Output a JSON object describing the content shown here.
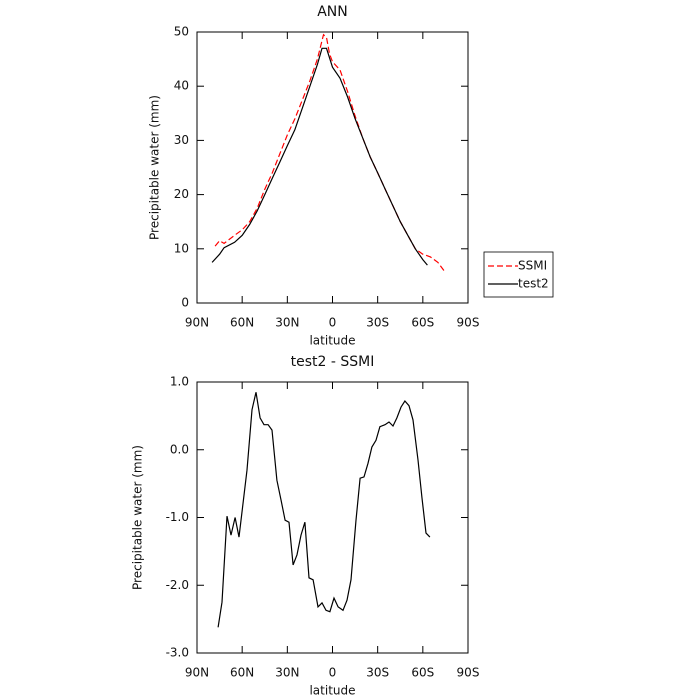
{
  "chart_data": [
    {
      "type": "line",
      "title": "ANN",
      "xlabel": "latitude",
      "ylabel": "Precipitable water (mm)",
      "xlim": [
        90,
        -90
      ],
      "ylim": [
        0,
        50
      ],
      "xticks": [
        {
          "value": 90,
          "label": "90N"
        },
        {
          "value": 60,
          "label": "60N"
        },
        {
          "value": 30,
          "label": "30N"
        },
        0,
        {
          "value": -30,
          "label": "30S"
        },
        {
          "value": -60,
          "label": "60S"
        },
        {
          "value": -90,
          "label": "90S"
        }
      ],
      "yticks": [
        0,
        10,
        20,
        30,
        40,
        50
      ],
      "legend": "right",
      "series": [
        {
          "name": "SSMI",
          "color": "#ff0000",
          "line_style": "dashed",
          "x": [
            78,
            75,
            72,
            65,
            60,
            55,
            50,
            45,
            40,
            35,
            30,
            25,
            20,
            15,
            10,
            6,
            4,
            2,
            0,
            -5,
            -10,
            -15,
            -20,
            -25,
            -30,
            -35,
            -40,
            -45,
            -50,
            -55,
            -60,
            -65,
            -70,
            -74
          ],
          "values": [
            10.5,
            11.5,
            11,
            12.5,
            13.5,
            15,
            17.5,
            21,
            24,
            27.5,
            31,
            34,
            37.5,
            41,
            45,
            49.5,
            49,
            46,
            44.5,
            43,
            39,
            34.5,
            30.5,
            27,
            24,
            21,
            18,
            15,
            12.5,
            10,
            9,
            8.5,
            7.5,
            6
          ]
        },
        {
          "name": "test2",
          "color": "#000000",
          "line_style": "solid",
          "x": [
            80,
            75,
            72,
            65,
            60,
            55,
            50,
            45,
            40,
            35,
            30,
            25,
            20,
            15,
            10,
            7,
            4,
            0,
            -5,
            -10,
            -15,
            -20,
            -25,
            -30,
            -35,
            -40,
            -45,
            -50,
            -55,
            -60,
            -63
          ],
          "values": [
            7.5,
            9,
            10.2,
            11.2,
            12.5,
            14.5,
            17,
            20,
            23,
            26,
            29,
            32,
            36,
            40,
            44,
            47,
            47,
            43.5,
            41.5,
            38,
            34,
            30.5,
            27,
            24,
            21,
            18,
            15,
            12.5,
            10,
            8,
            7
          ]
        }
      ]
    },
    {
      "type": "line",
      "title": "test2 - SSMI",
      "xlabel": "latitude",
      "ylabel": "Precipitable water (mm)",
      "xlim": [
        90,
        -90
      ],
      "ylim": [
        -3,
        1
      ],
      "xticks": [
        {
          "value": 90,
          "label": "90N"
        },
        {
          "value": 60,
          "label": "60N"
        },
        {
          "value": 30,
          "label": "30N"
        },
        0,
        {
          "value": -30,
          "label": "30S"
        },
        {
          "value": -60,
          "label": "60S"
        },
        {
          "value": -90,
          "label": "90S"
        }
      ],
      "yticks": [
        {
          "value": -3,
          "label": "-3.0"
        },
        {
          "value": -2,
          "label": "-2.0"
        },
        {
          "value": -1,
          "label": "-1.0"
        },
        {
          "value": 0,
          "label": "0.0"
        },
        {
          "value": 1,
          "label": "1.0"
        }
      ],
      "series": [
        {
          "color": "#000000",
          "line_style": "solid",
          "x": [
            76,
            73.4,
            70.1,
            67.4,
            64.7,
            62.1,
            56.8,
            53.5,
            50.8,
            48.1,
            45.5,
            42.8,
            40.2,
            36.9,
            34.2,
            31.5,
            28.9,
            26.2,
            23.6,
            20.9,
            18.3,
            15.6,
            12.9,
            9.6,
            7,
            4.3,
            1.7,
            -1,
            -3.7,
            -7,
            -9.6,
            -12.3,
            -15.6,
            -18.3,
            -20.9,
            -23.6,
            -26.2,
            -28.9,
            -31.5,
            -34.9,
            -37.5,
            -40.2,
            -42.8,
            -45.5,
            -48.1,
            -50.8,
            -53.5,
            -56.8,
            -59.4,
            -62.1,
            -64.7
          ],
          "values": [
            -2.62,
            -2.25,
            -0.98,
            -1.26,
            -1,
            -1.29,
            -0.3,
            0.59,
            0.85,
            0.47,
            0.37,
            0.37,
            0.29,
            -0.45,
            -0.74,
            -1.04,
            -1.07,
            -1.7,
            -1.55,
            -1.26,
            -1.07,
            -1.89,
            -1.92,
            -2.32,
            -2.26,
            -2.37,
            -2.39,
            -2.19,
            -2.32,
            -2.37,
            -2.22,
            -1.92,
            -1.04,
            -0.42,
            -0.4,
            -0.2,
            0.04,
            0.14,
            0.34,
            0.37,
            0.41,
            0.35,
            0.47,
            0.63,
            0.72,
            0.65,
            0.44,
            -0.15,
            -0.7,
            -1.23,
            -1.29
          ]
        }
      ]
    }
  ]
}
